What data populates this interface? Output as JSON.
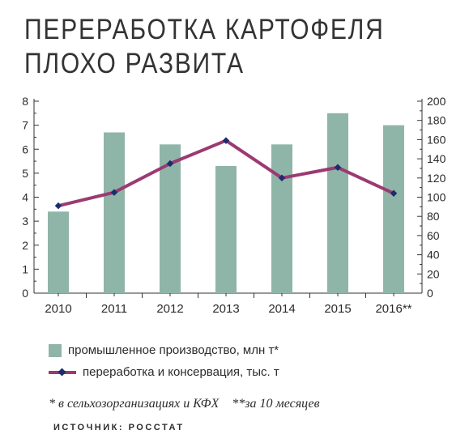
{
  "title_lines": [
    "ПЕРЕРАБОТКА КАРТОФЕЛЯ",
    "ПЛОХО РАЗВИТА"
  ],
  "chart_data": {
    "type": "bar",
    "categories": [
      "2010",
      "2011",
      "2012",
      "2013",
      "2014",
      "2015",
      "2016**"
    ],
    "series": [
      {
        "name": "промышленное производство, млн т*",
        "type": "bar",
        "axis": "left",
        "color": "#8fb5a8",
        "values": [
          3.4,
          6.7,
          6.2,
          5.3,
          6.2,
          7.5,
          7.0
        ]
      },
      {
        "name": "переработка и консервация, тыс. т",
        "type": "line",
        "axis": "right",
        "color": "#9b3a72",
        "marker_color": "#1c2c6e",
        "values": [
          91,
          105,
          135,
          159,
          120,
          131,
          104
        ]
      }
    ],
    "y_left": {
      "min": 0,
      "max": 8,
      "ticks": [
        "0",
        "1",
        "2",
        "3",
        "4",
        "5",
        "6",
        "7",
        "8"
      ]
    },
    "y_right": {
      "min": 0,
      "max": 200,
      "ticks": [
        "0",
        "20",
        "40",
        "60",
        "80",
        "100",
        "120",
        "140",
        "160",
        "180",
        "200"
      ]
    },
    "grid": false,
    "legend_position": "bottom-left"
  },
  "footnotes": [
    "* в сельхозорганизациях и КФХ",
    "**за 10 месяцев"
  ],
  "source": "ИСТОЧНИК: РОССТАТ"
}
